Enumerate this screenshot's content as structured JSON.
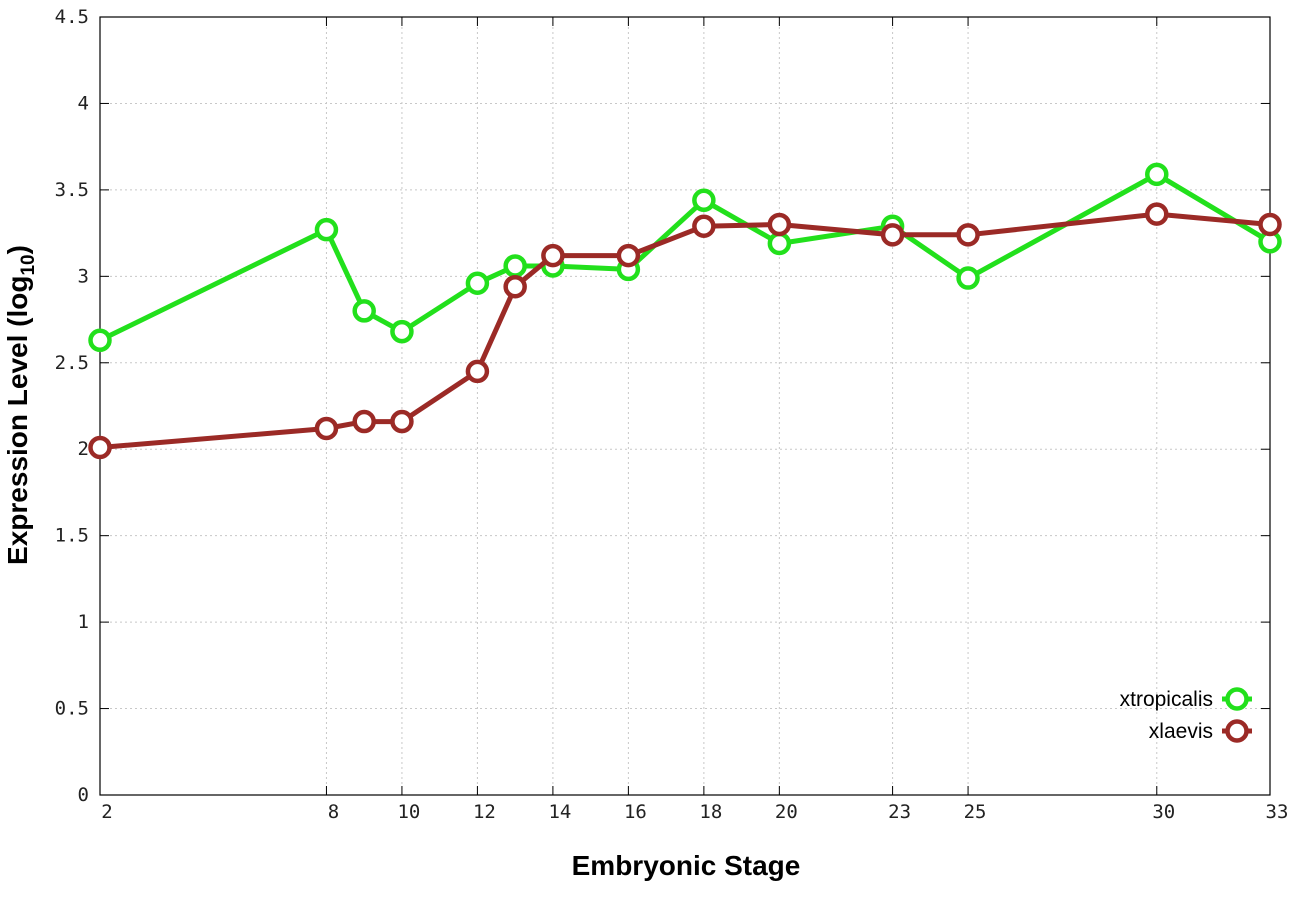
{
  "chart_data": {
    "type": "line",
    "title": "",
    "xlabel": "Embryonic Stage",
    "ylabel": "Expression Level (log10)",
    "ylabel_main": "Expression Level (log",
    "ylabel_sub": "10",
    "ylabel_end": ")",
    "xlim": [
      2,
      33
    ],
    "ylim": [
      0,
      4.5
    ],
    "x_ticks": [
      2,
      8,
      10,
      12,
      14,
      16,
      18,
      20,
      23,
      25,
      30,
      33
    ],
    "y_ticks": [
      "0",
      "0.5",
      "1",
      "1.5",
      "2",
      "2.5",
      "3",
      "3.5",
      "4",
      "4.5"
    ],
    "grid": true,
    "legend_position": "bottom-right",
    "x": [
      2,
      8,
      9,
      10,
      12,
      13,
      14,
      16,
      18,
      20,
      23,
      25,
      30,
      33
    ],
    "series": [
      {
        "name": "xtropicalis",
        "color": "#22e01c",
        "values": [
          2.63,
          3.27,
          2.8,
          2.68,
          2.96,
          3.06,
          3.06,
          3.04,
          3.44,
          3.19,
          3.29,
          2.99,
          3.59,
          3.2
        ]
      },
      {
        "name": "xlaevis",
        "color": "#9b2a26",
        "values": [
          2.01,
          2.12,
          2.16,
          2.16,
          2.45,
          2.94,
          3.12,
          3.12,
          3.29,
          3.3,
          3.24,
          3.24,
          3.36,
          3.3
        ]
      }
    ]
  }
}
